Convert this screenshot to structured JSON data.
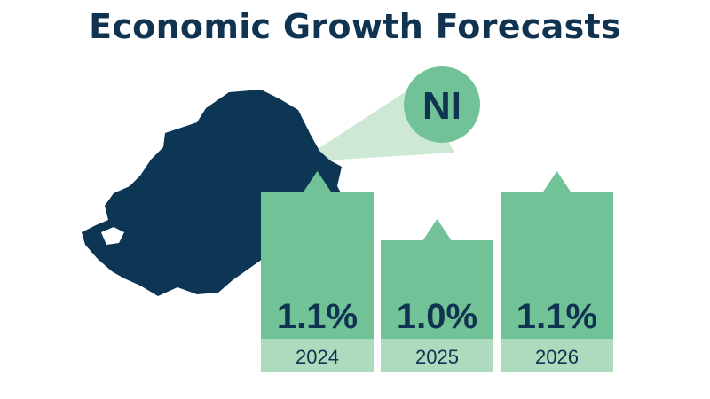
{
  "title": "Economic Growth Forecasts",
  "region_label": "NI",
  "colors": {
    "title": "#0f3350",
    "map": "#0c3654",
    "bar": "#72c297",
    "bar_base": "#addbbd",
    "callout": "#cde9d5",
    "circle": "#72c297",
    "text": "#0f3350"
  },
  "chart_data": {
    "type": "bar",
    "title": "Economic Growth Forecasts",
    "categories": [
      "2024",
      "2025",
      "2026"
    ],
    "values": [
      1.1,
      1.0,
      1.1
    ],
    "value_labels": [
      "1.1%",
      "1.0%",
      "1.1%"
    ],
    "unit": "%"
  }
}
